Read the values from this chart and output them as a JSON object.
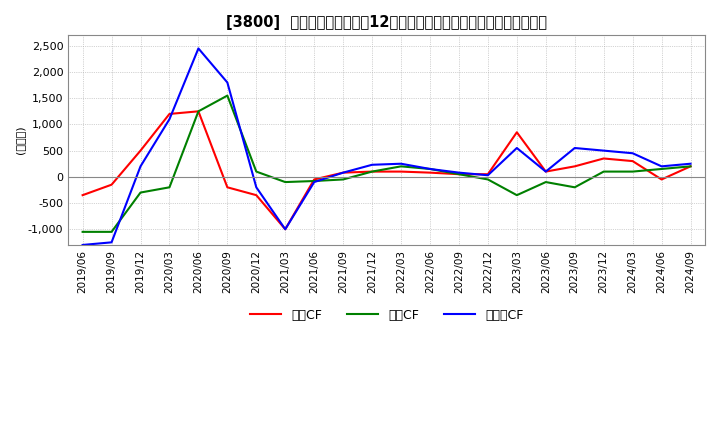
{
  "title": "[3800]  キャッシュフローの12か月移動合計の対前年同期増減額の推移",
  "ylabel": "(百万円)",
  "ylim": [
    -1300,
    2700
  ],
  "yticks": [
    -1000,
    -500,
    0,
    500,
    1000,
    1500,
    2000,
    2500
  ],
  "legend_labels": [
    "営業CF",
    "投資CF",
    "フリーCF"
  ],
  "legend_colors": [
    "#ff0000",
    "#008000",
    "#0000ff"
  ],
  "dates": [
    "2019/06",
    "2019/09",
    "2019/12",
    "2020/03",
    "2020/06",
    "2020/09",
    "2020/12",
    "2021/03",
    "2021/06",
    "2021/09",
    "2021/12",
    "2022/03",
    "2022/06",
    "2022/09",
    "2022/12",
    "2023/03",
    "2023/06",
    "2023/09",
    "2023/12",
    "2024/03",
    "2024/06",
    "2024/09"
  ],
  "operating_cf": [
    -350,
    -150,
    500,
    1200,
    1250,
    -200,
    -350,
    -1000,
    -50,
    80,
    100,
    100,
    80,
    50,
    50,
    850,
    100,
    200,
    350,
    300,
    -50,
    200
  ],
  "investing_cf": [
    -1050,
    -1050,
    -300,
    -200,
    1250,
    1550,
    100,
    -100,
    -80,
    -50,
    100,
    200,
    150,
    50,
    -50,
    -350,
    -100,
    -200,
    100,
    100,
    150,
    200
  ],
  "free_cf": [
    -1300,
    -1250,
    200,
    1100,
    2450,
    1800,
    -200,
    -1000,
    -100,
    80,
    230,
    250,
    150,
    80,
    30,
    550,
    100,
    550,
    500,
    450,
    200,
    250
  ],
  "background_color": "#ffffff",
  "grid_color": "#aaaaaa",
  "plot_bg_color": "#ffffff",
  "line_width": 1.5
}
